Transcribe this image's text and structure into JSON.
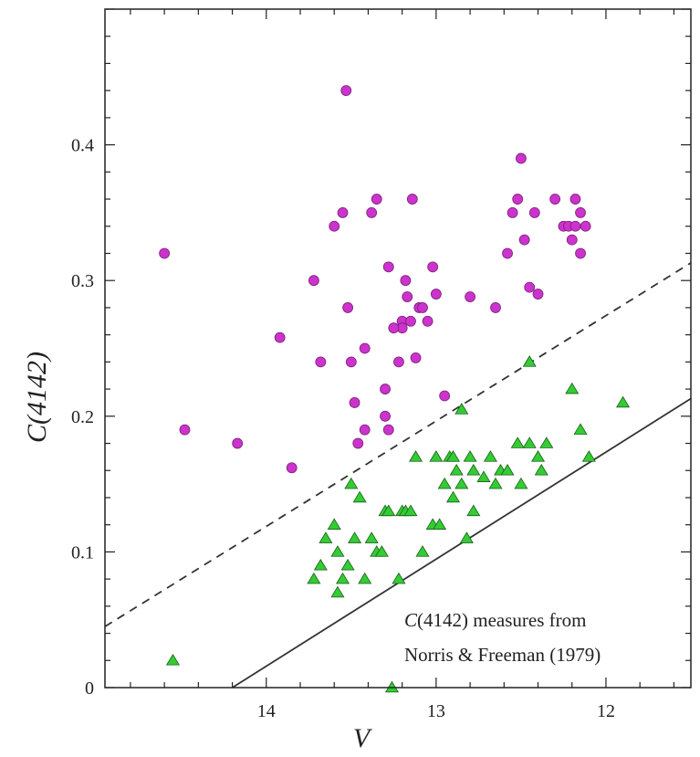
{
  "chart_data": {
    "type": "scatter",
    "xlabel": "V",
    "ylabel": "C(4142)",
    "xlim": [
      14.95,
      11.5
    ],
    "ylim": [
      0,
      0.5
    ],
    "x_inverted": true,
    "x_ticks": [
      14,
      13,
      12
    ],
    "y_ticks": [
      0,
      0.1,
      0.2,
      0.3,
      0.4
    ],
    "y_tick_labels": [
      "0",
      "0.1",
      "0.2",
      "0.3",
      "0.4"
    ],
    "annotation": [
      "C(4142) measures from",
      "Norris & Freeman (1979)"
    ],
    "annotation_parts": {
      "symbol": "C",
      "rest": "(4142) measures from",
      "line2": "Norris & Freeman (1979)"
    },
    "lines": [
      {
        "style": "dashed",
        "x": [
          14.95,
          11.5
        ],
        "y": [
          0.045,
          0.313
        ]
      },
      {
        "style": "solid",
        "x": [
          14.2,
          11.5
        ],
        "y": [
          0.0,
          0.213
        ]
      }
    ],
    "series": [
      {
        "marker": "circle",
        "color": "#cc33cc",
        "x": [
          13.53,
          14.6,
          14.48,
          14.17,
          13.85,
          13.92,
          13.72,
          13.68,
          13.6,
          13.55,
          13.52,
          13.5,
          13.46,
          13.42,
          13.42,
          13.38,
          13.35,
          13.3,
          13.28,
          13.28,
          13.22,
          13.2,
          13.18,
          13.17,
          13.15,
          13.14,
          13.12,
          13.1,
          13.08,
          13.05,
          13.02,
          13.0,
          12.95,
          12.8,
          12.65,
          12.58,
          12.55,
          12.52,
          12.5,
          12.48,
          12.45,
          12.42,
          12.4,
          12.3,
          12.25,
          12.22,
          12.2,
          12.18,
          12.18,
          12.15,
          12.15,
          12.12,
          13.3,
          13.48,
          13.2,
          13.25
        ],
        "y": [
          0.44,
          0.32,
          0.19,
          0.18,
          0.162,
          0.258,
          0.3,
          0.24,
          0.34,
          0.35,
          0.28,
          0.24,
          0.18,
          0.19,
          0.25,
          0.35,
          0.36,
          0.22,
          0.31,
          0.19,
          0.24,
          0.27,
          0.3,
          0.288,
          0.27,
          0.36,
          0.243,
          0.28,
          0.28,
          0.27,
          0.31,
          0.29,
          0.215,
          0.288,
          0.28,
          0.32,
          0.35,
          0.36,
          0.39,
          0.33,
          0.295,
          0.35,
          0.29,
          0.36,
          0.34,
          0.34,
          0.33,
          0.36,
          0.34,
          0.32,
          0.35,
          0.34,
          0.2,
          0.21,
          0.265,
          0.265
        ]
      },
      {
        "marker": "triangle",
        "color": "#33cc33",
        "x": [
          14.55,
          13.58,
          13.72,
          13.68,
          13.65,
          13.6,
          13.58,
          13.55,
          13.52,
          13.5,
          13.48,
          13.45,
          13.42,
          13.38,
          13.35,
          13.32,
          13.3,
          13.28,
          13.22,
          13.2,
          13.18,
          13.12,
          13.08,
          13.02,
          13.0,
          12.98,
          12.95,
          12.92,
          12.9,
          12.88,
          12.85,
          12.82,
          12.8,
          12.78,
          12.72,
          12.68,
          12.65,
          12.62,
          12.58,
          12.52,
          12.5,
          12.45,
          12.4,
          12.38,
          12.35,
          12.2,
          12.15,
          12.1,
          11.9,
          12.85,
          12.45,
          13.26,
          13.15,
          12.9,
          12.78
        ],
        "y": [
          0.02,
          0.07,
          0.08,
          0.09,
          0.11,
          0.12,
          0.1,
          0.08,
          0.09,
          0.15,
          0.11,
          0.14,
          0.08,
          0.11,
          0.1,
          0.1,
          0.13,
          0.13,
          0.08,
          0.13,
          0.13,
          0.17,
          0.1,
          0.12,
          0.17,
          0.12,
          0.15,
          0.17,
          0.14,
          0.16,
          0.15,
          0.11,
          0.17,
          0.13,
          0.155,
          0.17,
          0.15,
          0.16,
          0.16,
          0.18,
          0.15,
          0.18,
          0.17,
          0.16,
          0.18,
          0.22,
          0.19,
          0.17,
          0.21,
          0.205,
          0.24,
          0.0,
          0.13,
          0.17,
          0.16
        ]
      }
    ]
  }
}
